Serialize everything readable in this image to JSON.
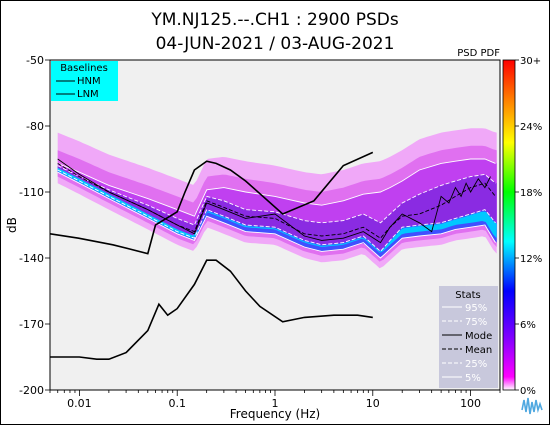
{
  "chart_data": {
    "type": "heatmap",
    "title_line1": "YM.NJ125.--.CH1 : 2900 PSDs",
    "title_line2": "04-JUN-2021 / 03-AUG-2021",
    "xlabel": "Frequency (Hz)",
    "ylabel": "dB",
    "x_scale": "log",
    "xlim": [
      0.005,
      200
    ],
    "ylim": [
      -200,
      -50
    ],
    "x_ticks": [
      {
        "value": 0.01,
        "label": "0.01"
      },
      {
        "value": 0.1,
        "label": "0.1"
      },
      {
        "value": 1,
        "label": "1"
      },
      {
        "value": 10,
        "label": "10"
      },
      {
        "value": 100,
        "label": "100"
      }
    ],
    "y_ticks": [
      {
        "value": -50,
        "label": "-50"
      },
      {
        "value": -80,
        "label": "-80"
      },
      {
        "value": -110,
        "label": "-110"
      },
      {
        "value": -140,
        "label": "-140"
      },
      {
        "value": -170,
        "label": "-170"
      },
      {
        "value": -200,
        "label": "-200"
      }
    ],
    "colorbar": {
      "title": "PSD PDF",
      "ticks": [
        "30+",
        "24%",
        "18%",
        "12%",
        "6%",
        "0%"
      ],
      "colors": [
        "#ff0000",
        "#ff7f00",
        "#ffff00",
        "#00ff00",
        "#00ffff",
        "#0000ff",
        "#7f00ff",
        "#ff00ff"
      ]
    },
    "baselines_legend": {
      "title": "Baselines",
      "items": [
        "HNM",
        "LNM"
      ],
      "bg_color": "#00ffff"
    },
    "stats_legend": {
      "title": "Stats",
      "items": [
        {
          "label": "95%",
          "style": "white-solid"
        },
        {
          "label": "75%",
          "style": "white-dashed"
        },
        {
          "label": "Mode",
          "style": "black-solid"
        },
        {
          "label": "Mean",
          "style": "black-dashed"
        },
        {
          "label": "25%",
          "style": "white-dashed"
        },
        {
          "label": "5%",
          "style": "white-solid"
        }
      ],
      "bg_color": "#c8c8dc"
    },
    "series": [
      {
        "name": "HNM",
        "x": [
          0.005,
          0.0098,
          0.022,
          0.05,
          0.06,
          0.1,
          0.12,
          0.15,
          0.2,
          0.25,
          0.35,
          0.5,
          1.2,
          2.5,
          5,
          10
        ],
        "y": [
          -129,
          -131,
          -134,
          -138,
          -125,
          -119,
          -110,
          -100,
          -96,
          -97,
          -100,
          -105,
          -120,
          -114,
          -98,
          -92
        ]
      },
      {
        "name": "LNM",
        "x": [
          0.005,
          0.01,
          0.015,
          0.02,
          0.03,
          0.05,
          0.065,
          0.08,
          0.1,
          0.15,
          0.2,
          0.25,
          0.35,
          0.5,
          0.7,
          1.2,
          2,
          4,
          7,
          10
        ],
        "y": [
          -185,
          -185,
          -186,
          -186,
          -183,
          -173,
          -161,
          -166,
          -163,
          -152,
          -141,
          -141,
          -146,
          -155,
          -162,
          -169,
          -167,
          -166,
          -166,
          -167
        ]
      },
      {
        "name": "Mode",
        "x": [
          0.006,
          0.01,
          0.02,
          0.05,
          0.1,
          0.15,
          0.2,
          0.3,
          0.5,
          1,
          2,
          3,
          5,
          8,
          12,
          15,
          20,
          30,
          40,
          50,
          60,
          70,
          80,
          90,
          100,
          120,
          140,
          160
        ],
        "y": [
          -95,
          -102,
          -110,
          -118,
          -125,
          -129,
          -115,
          -118,
          -122,
          -120,
          -130,
          -132,
          -131,
          -128,
          -133,
          -126,
          -120,
          -124,
          -128,
          -112,
          -115,
          -108,
          -112,
          -106,
          -110,
          -104,
          -108,
          -103
        ]
      },
      {
        "name": "Mean",
        "x": [
          0.006,
          0.01,
          0.02,
          0.05,
          0.1,
          0.15,
          0.2,
          0.3,
          0.5,
          1,
          2,
          3,
          5,
          8,
          12,
          15,
          20,
          30,
          50,
          70,
          100,
          140,
          180
        ],
        "y": [
          -97,
          -103,
          -110,
          -118,
          -125,
          -128,
          -114,
          -117,
          -121,
          -122,
          -129,
          -130,
          -129,
          -126,
          -131,
          -126,
          -121,
          -120,
          -116,
          -112,
          -108,
          -106,
          -112
        ]
      },
      {
        "name": "95%",
        "x": [
          0.006,
          0.01,
          0.02,
          0.05,
          0.1,
          0.15,
          0.2,
          0.3,
          0.5,
          1,
          2,
          3,
          5,
          8,
          12,
          15,
          20,
          30,
          50,
          70,
          100,
          140,
          180
        ],
        "y": [
          -97,
          -101,
          -107,
          -113,
          -118,
          -121,
          -109,
          -108,
          -110,
          -112,
          -115,
          -116,
          -114,
          -111,
          -110,
          -108,
          -105,
          -100,
          -97,
          -96,
          -95,
          -95,
          -97
        ]
      },
      {
        "name": "75%",
        "x": [
          0.006,
          0.01,
          0.02,
          0.05,
          0.1,
          0.15,
          0.2,
          0.3,
          0.5,
          1,
          2,
          3,
          5,
          8,
          12,
          15,
          20,
          30,
          50,
          70,
          100,
          140,
          180
        ],
        "y": [
          -98,
          -103,
          -109,
          -116,
          -122,
          -125,
          -112,
          -114,
          -118,
          -119,
          -123,
          -124,
          -123,
          -120,
          -124,
          -120,
          -115,
          -111,
          -107,
          -105,
          -103,
          -102,
          -106
        ]
      },
      {
        "name": "25%",
        "x": [
          0.006,
          0.01,
          0.02,
          0.05,
          0.1,
          0.15,
          0.2,
          0.3,
          0.5,
          1,
          2,
          3,
          5,
          8,
          12,
          15,
          20,
          30,
          50,
          70,
          100,
          140,
          180
        ],
        "y": [
          -100,
          -105,
          -112,
          -121,
          -128,
          -131,
          -118,
          -121,
          -125,
          -126,
          -132,
          -134,
          -133,
          -130,
          -137,
          -132,
          -126,
          -125,
          -124,
          -122,
          -120,
          -118,
          -124
        ]
      },
      {
        "name": "5%",
        "x": [
          0.006,
          0.01,
          0.02,
          0.05,
          0.1,
          0.15,
          0.2,
          0.3,
          0.5,
          1,
          2,
          3,
          5,
          8,
          12,
          15,
          20,
          30,
          50,
          70,
          100,
          140,
          180
        ],
        "y": [
          -101,
          -106,
          -113,
          -122,
          -129,
          -132,
          -121,
          -124,
          -128,
          -129,
          -135,
          -137,
          -136,
          -133,
          -140,
          -136,
          -131,
          -130,
          -129,
          -127,
          -126,
          -125,
          -133
        ]
      }
    ]
  }
}
